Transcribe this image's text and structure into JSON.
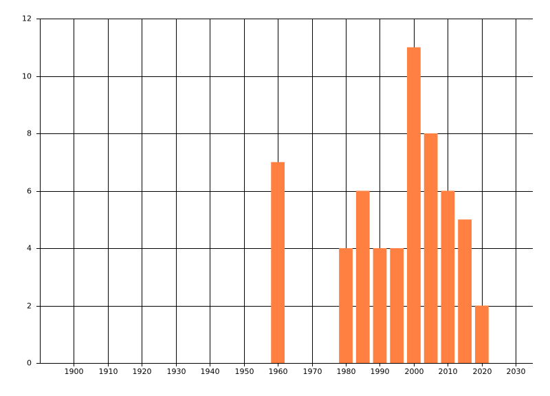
{
  "chart_data": {
    "type": "bar",
    "x": [
      1960,
      1980,
      1985,
      1990,
      1995,
      2000,
      2005,
      2010,
      2015,
      2020
    ],
    "values": [
      7,
      4,
      6,
      4,
      4,
      11,
      8,
      6,
      5,
      2
    ],
    "color": "#ff8040",
    "xlim": [
      1890,
      2035
    ],
    "xticks": [
      1900,
      1910,
      1920,
      1930,
      1940,
      1950,
      1960,
      1970,
      1980,
      1990,
      2000,
      2010,
      2020,
      2030
    ],
    "ylim": [
      0,
      12
    ],
    "yticks": [
      0,
      2,
      4,
      6,
      8,
      10,
      12
    ],
    "grid": true
  }
}
